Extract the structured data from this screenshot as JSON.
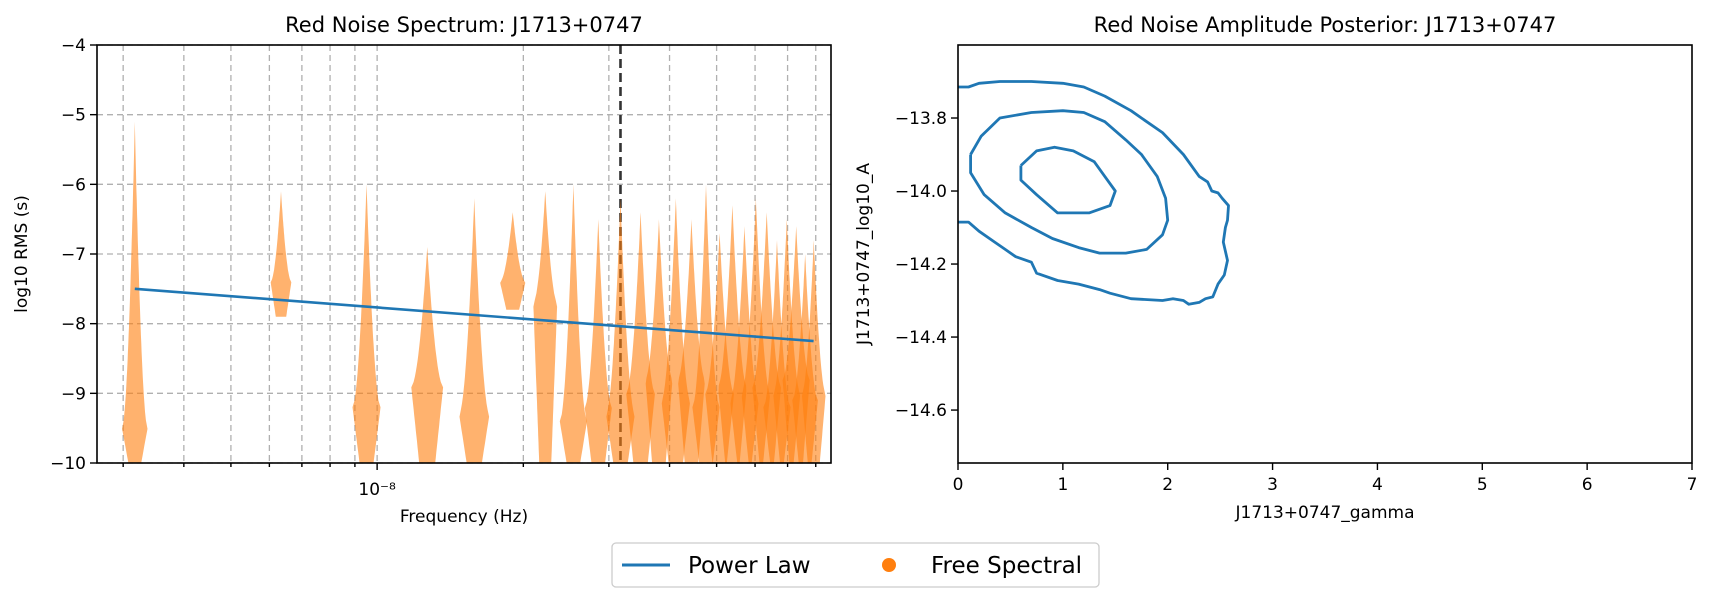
{
  "chart_data": [
    {
      "type": "violin",
      "title": "Red Noise Spectrum: J1713+0747",
      "xlabel": "Frequency (Hz)",
      "ylabel": "log10 RMS (s)",
      "xscale": "log",
      "xlim": [
        2.65e-09,
        8.6e-08
      ],
      "ylim": [
        -10,
        -4
      ],
      "yticks": [
        -10,
        -9,
        -8,
        -7,
        -6,
        -5,
        -4
      ],
      "xtick_label": "10⁻⁸",
      "grid": true,
      "vline_x": 3.17e-08,
      "power_law": {
        "x": [
          3.17e-09,
          7.92e-08
        ],
        "y": [
          -7.5,
          -8.25
        ]
      },
      "free_spectral": {
        "freqs": [
          3.17e-09,
          6.34e-09,
          9.51e-09,
          1.268e-08,
          1.585e-08,
          1.902e-08,
          2.219e-08,
          2.536e-08,
          2.853e-08,
          3.17e-08,
          3.487e-08,
          3.804e-08,
          4.121e-08,
          4.438e-08,
          4.755e-08,
          5.072e-08,
          5.389e-08,
          5.706e-08,
          6.023e-08,
          6.34e-08,
          6.657e-08,
          6.974e-08,
          7.291e-08,
          7.608e-08,
          7.925e-08
        ],
        "top": [
          -5.1,
          -6.1,
          -6.0,
          -6.9,
          -6.2,
          -6.4,
          -6.1,
          -6.0,
          -6.5,
          -6.2,
          -6.4,
          -6.5,
          -6.2,
          -6.5,
          -6.0,
          -6.7,
          -6.3,
          -6.6,
          -6.2,
          -6.4,
          -6.8,
          -6.5,
          -6.6,
          -7.0,
          -6.8
        ],
        "bottom": [
          -10,
          -7.9,
          -10,
          -10,
          -10,
          -7.8,
          -10,
          -10,
          -10,
          -10,
          -10,
          -10,
          -10,
          -10,
          -10,
          -10,
          -10,
          -10,
          -10,
          -10,
          -10,
          -10,
          -10,
          -10,
          -10
        ],
        "peak": [
          -9.5,
          -7.4,
          -9.2,
          -8.9,
          -9.3,
          -7.4,
          -7.7,
          -9.4,
          -9.2,
          -9.3,
          -9.0,
          -8.8,
          -9.1,
          -8.8,
          -9.2,
          -9.0,
          -8.9,
          -9.1,
          -9.0,
          -8.9,
          -9.2,
          -9.0,
          -8.8,
          -9.1,
          -9.0
        ],
        "width": [
          0.32,
          0.26,
          0.35,
          0.4,
          0.38,
          0.32,
          0.3,
          0.34,
          0.34,
          0.36,
          0.36,
          0.34,
          0.36,
          0.34,
          0.34,
          0.36,
          0.36,
          0.36,
          0.36,
          0.36,
          0.34,
          0.34,
          0.34,
          0.32,
          0.3
        ]
      }
    },
    {
      "type": "contour",
      "title": "Red Noise Amplitude Posterior: J1713+0747",
      "xlabel": "J1713+0747_gamma",
      "ylabel": "J1713+0747_log10_A",
      "xlim": [
        0,
        7
      ],
      "ylim": [
        -14.745,
        -13.6
      ],
      "xticks": [
        0,
        1,
        2,
        3,
        4,
        5,
        6,
        7
      ],
      "yticks": [
        -14.6,
        -14.4,
        -14.2,
        -14.0,
        -13.8
      ],
      "contours": [
        [
          [
            0.0,
            -13.715
          ],
          [
            0.1,
            -13.715
          ],
          [
            0.2,
            -13.705
          ],
          [
            0.4,
            -13.7
          ],
          [
            0.7,
            -13.7
          ],
          [
            1.0,
            -13.705
          ],
          [
            1.2,
            -13.715
          ],
          [
            1.4,
            -13.74
          ],
          [
            1.65,
            -13.78
          ],
          [
            1.8,
            -13.81
          ],
          [
            1.95,
            -13.84
          ],
          [
            2.15,
            -13.9
          ],
          [
            2.3,
            -13.96
          ],
          [
            2.38,
            -13.975
          ],
          [
            2.42,
            -14.0
          ],
          [
            2.48,
            -14.005
          ],
          [
            2.52,
            -14.02
          ],
          [
            2.58,
            -14.04
          ],
          [
            2.57,
            -14.08
          ],
          [
            2.55,
            -14.1
          ],
          [
            2.53,
            -14.14
          ],
          [
            2.57,
            -14.19
          ],
          [
            2.54,
            -14.23
          ],
          [
            2.48,
            -14.255
          ],
          [
            2.43,
            -14.29
          ],
          [
            2.36,
            -14.295
          ],
          [
            2.3,
            -14.305
          ],
          [
            2.2,
            -14.31
          ],
          [
            2.15,
            -14.3
          ],
          [
            2.05,
            -14.295
          ],
          [
            1.95,
            -14.3
          ],
          [
            1.65,
            -14.295
          ],
          [
            1.45,
            -14.28
          ],
          [
            1.35,
            -14.27
          ],
          [
            1.15,
            -14.255
          ],
          [
            0.95,
            -14.245
          ],
          [
            0.75,
            -14.225
          ],
          [
            0.7,
            -14.195
          ],
          [
            0.55,
            -14.18
          ],
          [
            0.45,
            -14.16
          ],
          [
            0.35,
            -14.14
          ],
          [
            0.2,
            -14.11
          ],
          [
            0.1,
            -14.085
          ],
          [
            0.0,
            -14.085
          ]
        ],
        [
          [
            0.12,
            -13.9
          ],
          [
            0.22,
            -13.85
          ],
          [
            0.4,
            -13.8
          ],
          [
            0.7,
            -13.785
          ],
          [
            1.0,
            -13.78
          ],
          [
            1.2,
            -13.785
          ],
          [
            1.4,
            -13.81
          ],
          [
            1.6,
            -13.86
          ],
          [
            1.75,
            -13.9
          ],
          [
            1.9,
            -13.96
          ],
          [
            1.98,
            -14.02
          ],
          [
            2.0,
            -14.08
          ],
          [
            1.95,
            -14.12
          ],
          [
            1.8,
            -14.16
          ],
          [
            1.6,
            -14.17
          ],
          [
            1.35,
            -14.17
          ],
          [
            1.15,
            -14.155
          ],
          [
            0.9,
            -14.13
          ],
          [
            0.7,
            -14.1
          ],
          [
            0.45,
            -14.06
          ],
          [
            0.25,
            -14.01
          ],
          [
            0.12,
            -13.95
          ],
          [
            0.12,
            -13.9
          ]
        ],
        [
          [
            0.6,
            -13.93
          ],
          [
            0.75,
            -13.89
          ],
          [
            0.92,
            -13.88
          ],
          [
            1.1,
            -13.89
          ],
          [
            1.3,
            -13.92
          ],
          [
            1.4,
            -13.96
          ],
          [
            1.5,
            -14.0
          ],
          [
            1.45,
            -14.04
          ],
          [
            1.25,
            -14.06
          ],
          [
            0.95,
            -14.06
          ],
          [
            0.75,
            -14.01
          ],
          [
            0.6,
            -13.97
          ],
          [
            0.6,
            -13.93
          ]
        ]
      ]
    }
  ],
  "legend": {
    "items": [
      {
        "label": "Power Law",
        "color": "#1f77b4",
        "marker": "line"
      },
      {
        "label": "Free Spectral",
        "color": "#ff7f0e",
        "marker": "dot"
      }
    ],
    "placement": "bottom-center"
  }
}
